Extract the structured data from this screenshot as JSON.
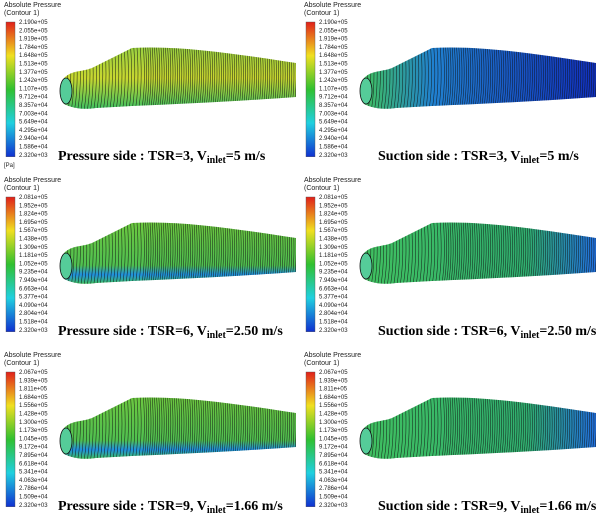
{
  "panels": [
    {
      "legend_title": "Absolute Pressure",
      "legend_subtitle": "(Contour 1)",
      "unit": "[Pa]",
      "labels": [
        "2.190e+05",
        "2.055e+05",
        "1.919e+05",
        "1.784e+05",
        "1.648e+05",
        "1.513e+05",
        "1.377e+05",
        "1.242e+05",
        "1.107e+05",
        "9.712e+04",
        "8.357e+04",
        "7.003e+04",
        "5.649e+04",
        "4.295e+04",
        "2.940e+04",
        "1.586e+04",
        "2.320e+03"
      ],
      "caption": {
        "prefix": "Pressure side : TSR=3, V",
        "sub": "inlet",
        "suffix": "=5 m/s"
      }
    },
    {
      "legend_title": "Absolute Pressure",
      "legend_subtitle": "(Contour 1)",
      "labels": [
        "2.190e+05",
        "2.055e+05",
        "1.919e+05",
        "1.784e+05",
        "1.648e+05",
        "1.513e+05",
        "1.377e+05",
        "1.242e+05",
        "1.107e+05",
        "9.712e+04",
        "8.357e+04",
        "7.003e+04",
        "5.649e+04",
        "4.295e+04",
        "2.940e+04",
        "1.586e+04",
        "2.320e+03"
      ],
      "caption": {
        "prefix": "Suction side : TSR=3, V",
        "sub": "inlet",
        "suffix": "=5 m/s"
      }
    },
    {
      "legend_title": "Absolute Pressure",
      "legend_subtitle": "(Contour 1)",
      "labels": [
        "2.081e+05",
        "1.952e+05",
        "1.824e+05",
        "1.695e+05",
        "1.567e+05",
        "1.438e+05",
        "1.309e+05",
        "1.181e+05",
        "1.052e+05",
        "9.235e+04",
        "7.949e+04",
        "6.663e+04",
        "5.377e+04",
        "4.090e+04",
        "2.804e+04",
        "1.518e+04",
        "2.320e+03"
      ],
      "caption": {
        "prefix": "Pressure side : TSR=6, V",
        "sub": "inlet",
        "suffix": "=2.50 m/s"
      }
    },
    {
      "legend_title": "Absolute Pressure",
      "legend_subtitle": "(Contour 1)",
      "labels": [
        "2.081e+05",
        "1.952e+05",
        "1.824e+05",
        "1.695e+05",
        "1.567e+05",
        "1.438e+05",
        "1.309e+05",
        "1.181e+05",
        "1.052e+05",
        "9.235e+04",
        "7.949e+04",
        "6.663e+04",
        "5.377e+04",
        "4.090e+04",
        "2.804e+04",
        "1.518e+04",
        "2.320e+03"
      ],
      "caption": {
        "prefix": "Suction side : TSR=6, V",
        "sub": "inlet",
        "suffix": "=2.50 m/s"
      }
    },
    {
      "legend_title": "Absolute Pressure",
      "legend_subtitle": "(Contour 1)",
      "labels": [
        "2.067e+05",
        "1.939e+05",
        "1.811e+05",
        "1.684e+05",
        "1.556e+05",
        "1.428e+05",
        "1.300e+05",
        "1.173e+05",
        "1.045e+05",
        "9.172e+04",
        "7.895e+04",
        "6.618e+04",
        "5.341e+04",
        "4.063e+04",
        "2.786e+04",
        "1.509e+04",
        "2.320e+03"
      ],
      "caption": {
        "prefix": "Pressure side : TSR=9, V",
        "sub": "inlet",
        "suffix": "=1.66 m/s"
      }
    },
    {
      "legend_title": "Absolute Pressure",
      "legend_subtitle": "(Contour 1)",
      "labels": [
        "2.067e+05",
        "1.939e+05",
        "1.811e+05",
        "1.684e+05",
        "1.556e+05",
        "1.428e+05",
        "1.300e+05",
        "1.173e+05",
        "1.045e+05",
        "9.172e+04",
        "7.895e+04",
        "6.618e+04",
        "5.341e+04",
        "4.063e+04",
        "2.786e+04",
        "1.509e+04",
        "2.320e+03"
      ],
      "caption": {
        "prefix": "Suction side : TSR=9, V",
        "sub": "inlet",
        "suffix": "=1.66 m/s"
      }
    }
  ]
}
